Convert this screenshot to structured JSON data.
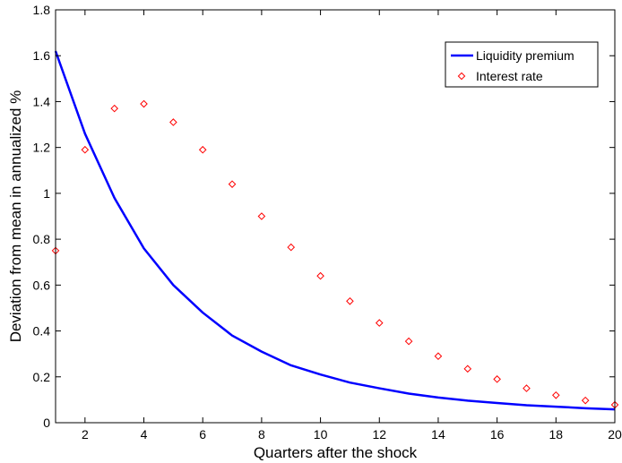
{
  "chart_data": {
    "type": "line",
    "x": [
      1,
      2,
      3,
      4,
      5,
      6,
      7,
      8,
      9,
      10,
      11,
      12,
      13,
      14,
      15,
      16,
      17,
      18,
      19,
      20
    ],
    "series": [
      {
        "name": "Liquidity premium",
        "style": "line",
        "color": "#0000ff",
        "values": [
          1.62,
          1.26,
          0.98,
          0.76,
          0.6,
          0.48,
          0.38,
          0.31,
          0.25,
          0.21,
          0.175,
          0.15,
          0.127,
          0.11,
          0.096,
          0.086,
          0.076,
          0.07,
          0.063,
          0.058
        ]
      },
      {
        "name": "Interest rate",
        "style": "marker-diamond",
        "color": "#ff0000",
        "values": [
          0.75,
          1.19,
          1.37,
          1.39,
          1.31,
          1.19,
          1.04,
          0.9,
          0.765,
          0.64,
          0.53,
          0.435,
          0.355,
          0.29,
          0.235,
          0.19,
          0.15,
          0.12,
          0.097,
          0.078
        ]
      }
    ],
    "xlabel": "Quarters after the shock",
    "ylabel": "Deviation from mean in annualized %",
    "xlim": [
      1,
      20
    ],
    "ylim": [
      0,
      1.8
    ],
    "xticks": [
      2,
      4,
      6,
      8,
      10,
      12,
      14,
      16,
      18,
      20
    ],
    "xtick_labels": [
      "2",
      "4",
      "6",
      "8",
      "10",
      "12",
      "14",
      "16",
      "18",
      "20"
    ],
    "yticks": [
      0,
      0.2,
      0.4,
      0.6,
      0.8,
      1,
      1.2,
      1.4,
      1.6,
      1.8
    ],
    "ytick_labels": [
      "0",
      "0.2",
      "0.4",
      "0.6",
      "0.8",
      "1",
      "1.2",
      "1.4",
      "1.6",
      "1.8"
    ],
    "grid": false,
    "legend_position": "top-right"
  }
}
